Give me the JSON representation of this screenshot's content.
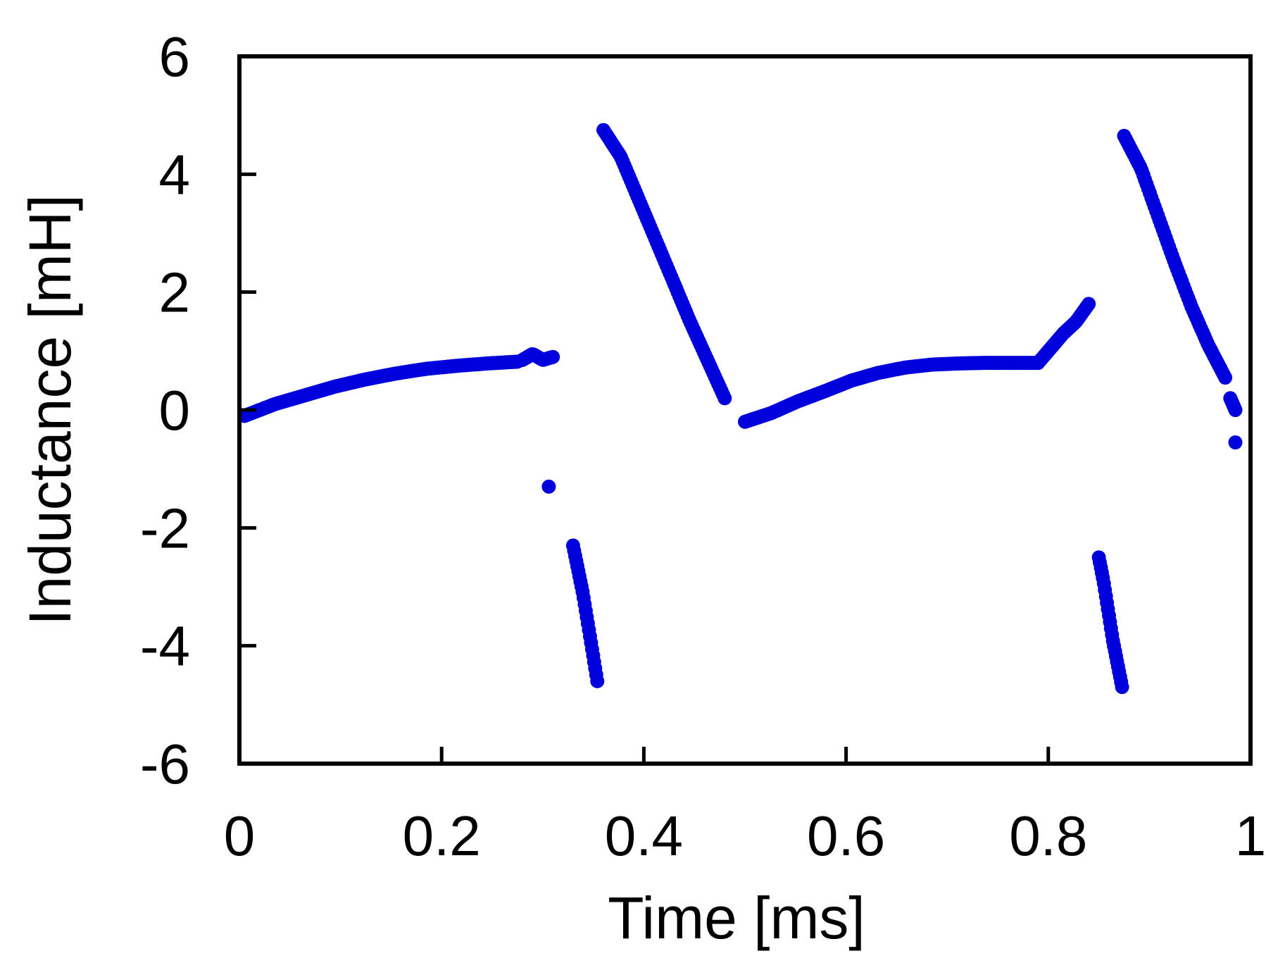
{
  "chart_data": {
    "type": "scatter",
    "title": "",
    "xlabel": "Time [ms]",
    "ylabel": "Inductance [mH]",
    "xlim": [
      0,
      1
    ],
    "ylim": [
      -6,
      6
    ],
    "xticks": [
      "0",
      "0.2",
      "0.4",
      "0.6",
      "0.8",
      "1"
    ],
    "yticks": [
      "6",
      "4",
      "2",
      "0",
      "-2",
      "-4",
      "-6"
    ],
    "grid": false,
    "legend": "none",
    "marker_color": "#0000dd",
    "series": [
      {
        "segments": [
          {
            "x0": 0.005,
            "x1": 0.275,
            "y": [
              -0.1,
              0.1,
              0.25,
              0.4,
              0.52,
              0.62,
              0.7,
              0.75,
              0.79,
              0.82
            ]
          },
          {
            "x0": 0.28,
            "x1": 0.31,
            "y": [
              0.85,
              0.95,
              0.85,
              0.9
            ]
          },
          {
            "x0": 0.306,
            "x1": 0.306,
            "y": [
              -1.3
            ]
          },
          {
            "x0": 0.33,
            "x1": 0.354,
            "y": [
              -2.3,
              -2.7,
              -3.1,
              -3.6,
              -4.1,
              -4.6
            ]
          },
          {
            "x0": 0.36,
            "x1": 0.48,
            "y": [
              4.75,
              4.3,
              3.6,
              2.9,
              2.2,
              1.5,
              0.85,
              0.2
            ]
          },
          {
            "x0": 0.5,
            "x1": 0.79,
            "y": [
              -0.2,
              -0.05,
              0.15,
              0.32,
              0.5,
              0.63,
              0.72,
              0.77,
              0.79,
              0.8,
              0.8,
              0.8
            ]
          },
          {
            "x0": 0.79,
            "x1": 0.84,
            "y": [
              0.8,
              1.05,
              1.3,
              1.5,
              1.8
            ]
          },
          {
            "x0": 0.85,
            "x1": 0.873,
            "y": [
              -2.5,
              -2.9,
              -3.4,
              -3.9,
              -4.3,
              -4.7
            ]
          },
          {
            "x0": 0.875,
            "x1": 0.975,
            "y": [
              4.65,
              4.1,
              3.3,
              2.5,
              1.75,
              1.1,
              0.55
            ]
          },
          {
            "x0": 0.98,
            "x1": 0.985,
            "y": [
              0.2,
              0.0
            ]
          },
          {
            "x0": 0.985,
            "x1": 0.985,
            "y": [
              -0.55
            ]
          }
        ]
      }
    ]
  }
}
